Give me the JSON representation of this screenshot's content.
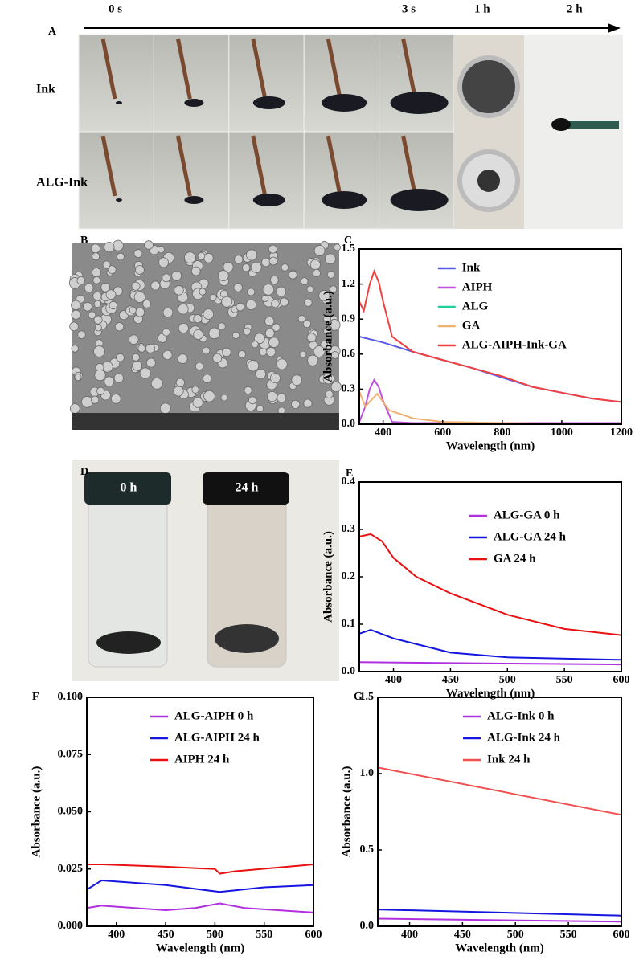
{
  "figure": {
    "panel_labels": [
      "A",
      "B",
      "C",
      "D",
      "E",
      "F",
      "G"
    ],
    "timeline": [
      "0 s",
      "3 s",
      "1 h",
      "2 h"
    ],
    "rows": [
      "Ink",
      "ALG-Ink"
    ],
    "vial_labels": [
      "0 h",
      "24 h"
    ]
  },
  "chart_data": [
    {
      "type": "line",
      "x_label": "Wavelength (nm)",
      "y_label": "Absorbance (a.u.)",
      "xlim": [
        320,
        1200
      ],
      "ylim": [
        0,
        1.5
      ],
      "xticks": [
        400,
        600,
        800,
        1000,
        1200
      ],
      "yticks": [
        {
          "value": 0,
          "label": "0.0"
        },
        0.3,
        0.6,
        0.9,
        1.2,
        1.5
      ],
      "legend": "upper right",
      "series": [
        {
          "name": "Ink",
          "color": "#5a5ae8",
          "x": [
            320,
            400,
            500,
            600,
            700,
            800,
            900,
            1000,
            1100,
            1200
          ],
          "values": [
            0.75,
            0.7,
            0.62,
            0.55,
            0.48,
            0.4,
            0.32,
            0.27,
            0.22,
            0.19
          ]
        },
        {
          "name": "AIPH",
          "color": "#c050e0",
          "x": [
            320,
            340,
            355,
            370,
            385,
            400,
            430,
            500,
            800,
            1200
          ],
          "values": [
            0.02,
            0.15,
            0.3,
            0.38,
            0.32,
            0.2,
            0.02,
            0.01,
            0.01,
            0.01
          ]
        },
        {
          "name": "ALG",
          "color": "#20d0a0",
          "x": [
            320,
            600,
            1200
          ],
          "values": [
            0.005,
            0.005,
            0.005
          ]
        },
        {
          "name": "GA",
          "color": "#f0b070",
          "x": [
            320,
            340,
            380,
            420,
            500,
            600,
            800,
            1200
          ],
          "values": [
            0.28,
            0.15,
            0.26,
            0.12,
            0.05,
            0.02,
            0.01,
            0
          ]
        },
        {
          "name": "ALG-AIPH-Ink-GA",
          "color": "#f04040",
          "x": [
            320,
            335,
            355,
            370,
            385,
            400,
            430,
            500,
            600,
            700,
            800,
            900,
            1000,
            1100,
            1200
          ],
          "values": [
            1.05,
            0.97,
            1.2,
            1.31,
            1.22,
            1.05,
            0.75,
            0.62,
            0.55,
            0.48,
            0.41,
            0.32,
            0.27,
            0.22,
            0.19
          ]
        }
      ]
    },
    {
      "type": "line",
      "x_label": "Wavelength (nm)",
      "y_label": "Absorbance (a.u.)",
      "xlim": [
        370,
        600
      ],
      "ylim": [
        0,
        0.4
      ],
      "xticks": [
        400,
        450,
        500,
        550,
        600
      ],
      "yticks": [
        {
          "value": 0,
          "label": "0.0"
        },
        0.1,
        0.2,
        0.3,
        0.4
      ],
      "legend": "upper right",
      "series": [
        {
          "name": "ALG-GA 0 h",
          "color": "#b030e0",
          "x": [
            370,
            450,
            500,
            600
          ],
          "values": [
            0.02,
            0.018,
            0.017,
            0.015
          ]
        },
        {
          "name": "ALG-GA 24 h",
          "color": "#1515e0",
          "x": [
            370,
            380,
            400,
            450,
            500,
            600
          ],
          "values": [
            0.08,
            0.088,
            0.07,
            0.04,
            0.03,
            0.025
          ]
        },
        {
          "name": "GA 24 h",
          "color": "#e81010",
          "x": [
            370,
            380,
            390,
            400,
            420,
            450,
            500,
            550,
            600
          ],
          "values": [
            0.285,
            0.29,
            0.275,
            0.24,
            0.2,
            0.165,
            0.12,
            0.09,
            0.077
          ]
        }
      ]
    },
    {
      "type": "line",
      "x_label": "Wavelength (nm)",
      "y_label": "Absorbance (a.u.)",
      "xlim": [
        370,
        600
      ],
      "ylim": [
        0,
        0.1
      ],
      "xticks": [
        400,
        450,
        500,
        550,
        600
      ],
      "yticks": [
        {
          "value": 0,
          "label": "0.000"
        },
        0.025,
        {
          "value": 0.05,
          "label": "0.050"
        },
        0.075,
        {
          "value": 0.1,
          "label": "0.100"
        }
      ],
      "legend": "upper center",
      "series": [
        {
          "name": "ALG-AIPH 0 h",
          "color": "#b030e0",
          "x": [
            370,
            385,
            450,
            480,
            505,
            530,
            600
          ],
          "values": [
            0.008,
            0.009,
            0.007,
            0.008,
            0.01,
            0.008,
            0.006
          ]
        },
        {
          "name": "ALG-AIPH 24 h",
          "color": "#1515e0",
          "x": [
            370,
            385,
            450,
            505,
            550,
            600
          ],
          "values": [
            0.016,
            0.02,
            0.018,
            0.015,
            0.017,
            0.018
          ]
        },
        {
          "name": "AIPH 24 h",
          "color": "#e81010",
          "x": [
            370,
            385,
            450,
            500,
            505,
            520,
            600
          ],
          "values": [
            0.027,
            0.027,
            0.026,
            0.025,
            0.023,
            0.024,
            0.027
          ]
        }
      ]
    },
    {
      "type": "line",
      "x_label": "Wavelength (nm)",
      "y_label": "Absorbance (a.u.)",
      "xlim": [
        370,
        600
      ],
      "ylim": [
        0,
        1.5
      ],
      "xticks": [
        400,
        450,
        500,
        550,
        600
      ],
      "yticks": [
        {
          "value": 0,
          "label": "0.0"
        },
        0.5,
        {
          "value": 1,
          "label": "1.0"
        },
        1.5
      ],
      "legend": "upper center",
      "series": [
        {
          "name": "ALG-Ink 0 h",
          "color": "#b030e0",
          "x": [
            370,
            600
          ],
          "values": [
            0.05,
            0.03
          ]
        },
        {
          "name": "ALG-Ink 24 h",
          "color": "#1515e0",
          "x": [
            370,
            600
          ],
          "values": [
            0.11,
            0.07
          ]
        },
        {
          "name": "Ink 24 h",
          "color": "#f05050",
          "x": [
            370,
            600
          ],
          "values": [
            1.04,
            0.73
          ]
        }
      ]
    }
  ]
}
